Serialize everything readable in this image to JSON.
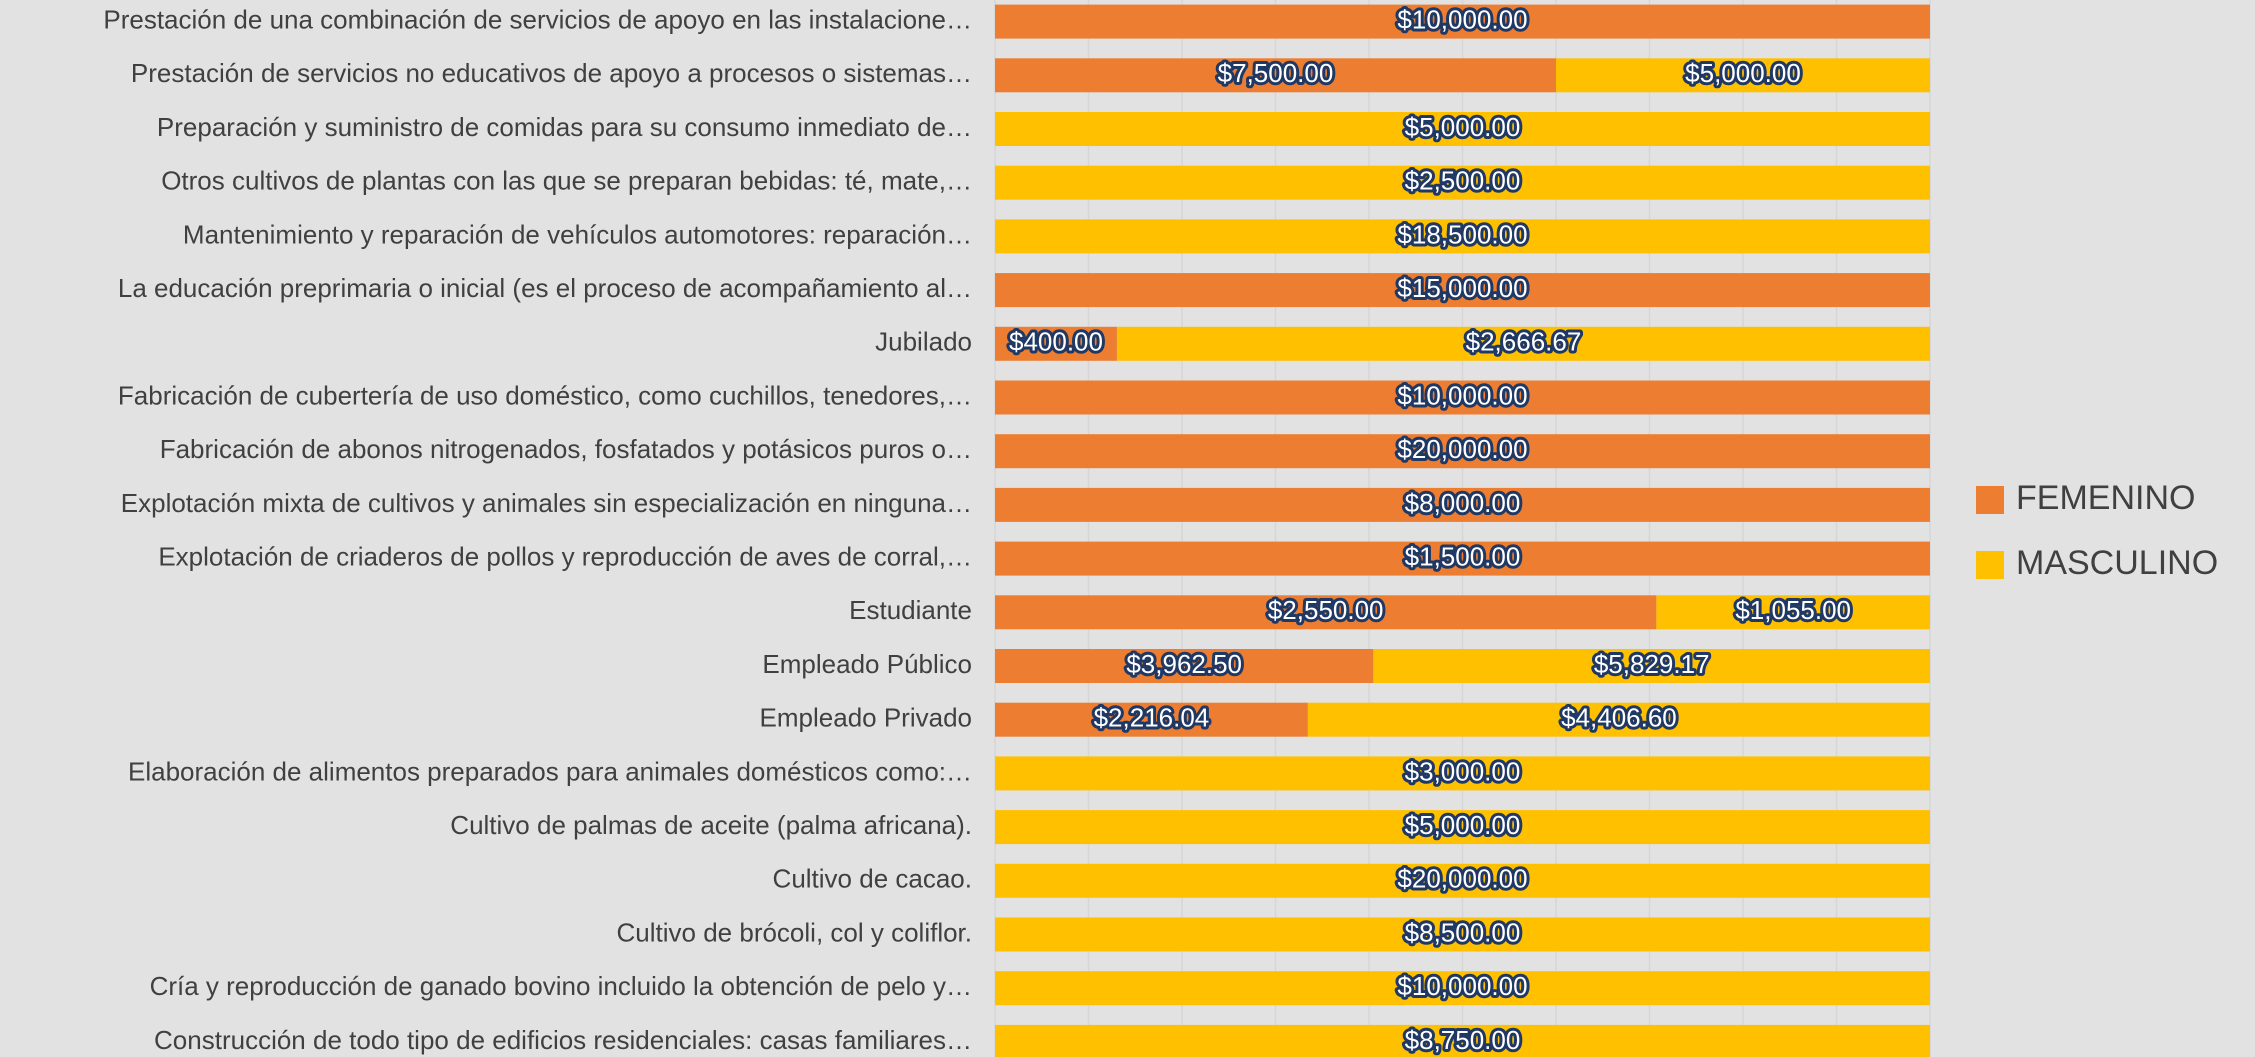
{
  "chart_data": {
    "type": "bar",
    "orientation": "horizontal",
    "stacked_percent": true,
    "categories": [
      "Prestación de una combinación de servicios de apoyo en las instalacione…",
      "Prestación de servicios no educativos de apoyo a procesos o sistemas…",
      "Preparación y suministro de comidas para su consumo inmediato de…",
      "Otros cultivos de plantas con las que se preparan bebidas: té, mate,…",
      "Mantenimiento y reparación de vehículos automotores: reparación…",
      "La educación preprimaria o inicial (es el proceso de acompañamiento al…",
      "Jubilado",
      "Fabricación de cubertería de uso doméstico, como cuchillos, tenedores,…",
      "Fabricación de abonos nitrogenados, fosfatados y potásicos puros o…",
      "Explotación mixta de cultivos y animales sin especialización en ninguna…",
      "Explotación de criaderos de pollos y reproducción de aves de corral,…",
      "Estudiante",
      "Empleado Público",
      "Empleado Privado",
      "Elaboración de alimentos preparados para animales domésticos como:…",
      "Cultivo de palmas de aceite (palma africana).",
      "Cultivo de cacao.",
      "Cultivo de brócoli, col y coliflor.",
      "Cría y reproducción de ganado bovino incluido la obtención de pelo y…",
      "Construcción de todo tipo de edificios residenciales: casas familiares…"
    ],
    "series": [
      {
        "name": "FEMENINO",
        "color": "#ed7d31",
        "values": [
          10000,
          7500,
          null,
          null,
          null,
          15000,
          400,
          10000,
          20000,
          8000,
          1500,
          2550,
          3962.5,
          2216.04,
          null,
          null,
          null,
          null,
          null,
          null
        ],
        "value_labels": [
          "$10,000.00",
          "$7,500.00",
          null,
          null,
          null,
          "$15,000.00",
          "$400.00",
          "$10,000.00",
          "$20,000.00",
          "$8,000.00",
          "$1,500.00",
          "$2,550.00",
          "$3,962.50",
          "$2,216.04",
          null,
          null,
          null,
          null,
          null,
          null
        ]
      },
      {
        "name": "MASCULINO",
        "color": "#ffc000",
        "values": [
          null,
          5000,
          5000,
          2500,
          18500,
          null,
          2666.67,
          null,
          null,
          null,
          null,
          1055,
          5829.17,
          4406.6,
          3000,
          5000,
          20000,
          8500,
          10000,
          8750
        ],
        "value_labels": [
          null,
          "$5,000.00",
          "$5,000.00",
          "$2,500.00",
          "$18,500.00",
          null,
          "$2,666.67",
          null,
          null,
          null,
          null,
          "$1,055.00",
          "$5,829.17",
          "$4,406.60",
          "$3,000.00",
          "$5,000.00",
          "$20,000.00",
          "$8,500.00",
          "$10,000.00",
          "$8,750.00"
        ]
      }
    ],
    "xlim": [
      0,
      100
    ],
    "xticks": [
      0,
      10,
      20,
      30,
      40,
      50,
      60,
      70,
      80,
      90,
      100
    ],
    "grid": true,
    "legend": "right"
  }
}
